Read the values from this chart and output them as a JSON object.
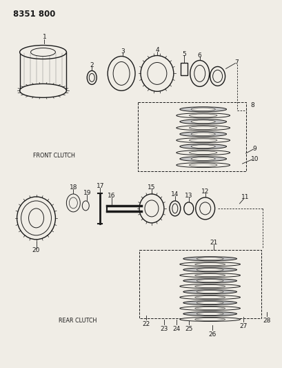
{
  "title": "8351 800",
  "background_color": "#f0ede6",
  "line_color": "#1a1a1a",
  "front_clutch_label": "FRONT CLUTCH",
  "rear_clutch_label": "REAR CLUTCH"
}
